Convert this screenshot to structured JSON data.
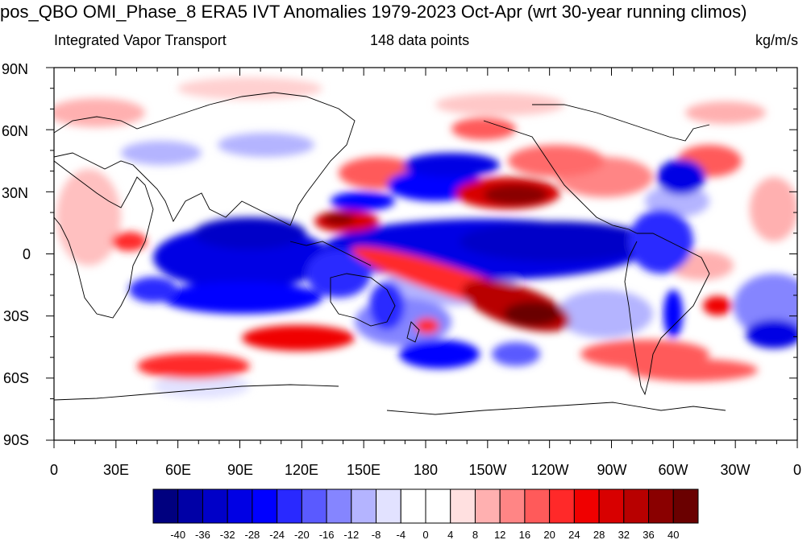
{
  "title": "pos_QBO OMI_Phase_8 ERA5 IVT Anomalies 1979-2023 Oct-Apr (wrt 30-year running climos)",
  "subtitle_left": "Integrated Vapor Transport",
  "subtitle_center": "148 data points",
  "subtitle_right": "kg/m/s",
  "y_ticks": [
    "90N",
    "60N",
    "30N",
    "0",
    "30S",
    "60S",
    "90S"
  ],
  "x_ticks": [
    "0",
    "30E",
    "60E",
    "90E",
    "120E",
    "150E",
    "180",
    "150W",
    "120W",
    "90W",
    "60W",
    "30W",
    "0"
  ],
  "colorbar": {
    "labels": [
      "-40",
      "-36",
      "-32",
      "-28",
      "-24",
      "-20",
      "-16",
      "-12",
      "-8",
      "-4",
      "0",
      "4",
      "8",
      "12",
      "16",
      "20",
      "24",
      "28",
      "32",
      "36",
      "40"
    ],
    "colors": [
      "#00007f",
      "#0000a6",
      "#0000c8",
      "#0000e4",
      "#0000ff",
      "#2929ff",
      "#5a5aff",
      "#8585ff",
      "#b4b4ff",
      "#e2e2ff",
      "#ffffff",
      "#ffffff",
      "#ffe0e0",
      "#ffb0b0",
      "#ff8585",
      "#ff5a5a",
      "#ff2929",
      "#f00000",
      "#d80000",
      "#b80000",
      "#8a0000",
      "#6a0000"
    ]
  },
  "map": {
    "projection": "cylindrical equidistant",
    "lon_range": [
      0,
      360
    ],
    "lat_range": [
      -90,
      90
    ]
  }
}
